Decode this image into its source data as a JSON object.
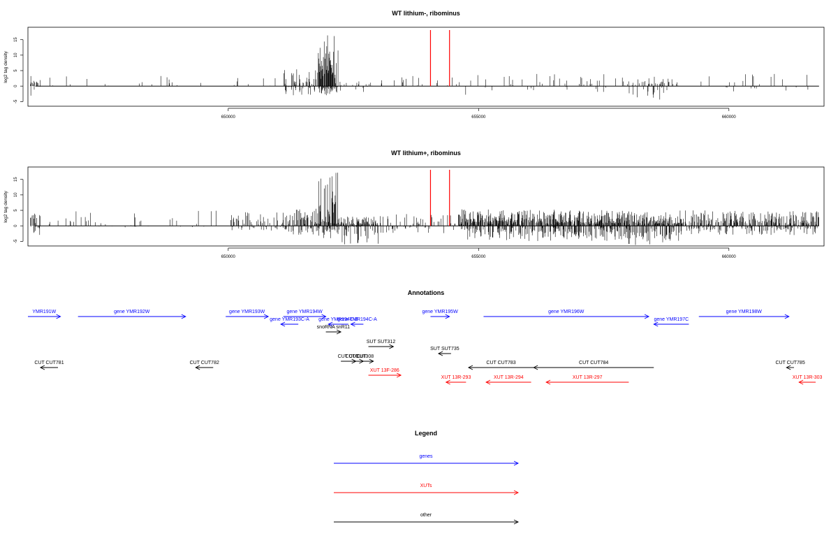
{
  "chart_data": [
    {
      "type": "bar",
      "title": "WT lithium-, ribominus",
      "ylabel": "log2 tag density",
      "xlim": [
        646000,
        661900
      ],
      "ylim": [
        -6.5,
        19
      ],
      "yticks": [
        -5,
        0,
        5,
        10,
        15
      ],
      "xticks": [
        "650000",
        "655000",
        "660000"
      ],
      "xtick_values": [
        650000,
        655000,
        660000
      ],
      "marker_lines_x": [
        654040,
        654420
      ],
      "marker_color": "#ff0000",
      "regions": [
        {
          "start": 646050,
          "end": 646250,
          "density": 0.35,
          "pos_max": 3.5,
          "neg_max": 3.5
        },
        {
          "start": 646300,
          "end": 649800,
          "density": 0.05,
          "pos_max": 3.5,
          "neg_max": 0
        },
        {
          "start": 650000,
          "end": 651100,
          "density": 0.05,
          "pos_max": 3.5,
          "neg_max": 0
        },
        {
          "start": 651100,
          "end": 651800,
          "density": 0.45,
          "pos_max": 5.5,
          "neg_max": 3
        },
        {
          "start": 651800,
          "end": 652200,
          "density": 0.9,
          "pos_max": 17.5,
          "neg_max": 3
        },
        {
          "start": 652200,
          "end": 653000,
          "density": 0.08,
          "pos_max": 2,
          "neg_max": 2.5
        },
        {
          "start": 653000,
          "end": 654600,
          "density": 0.07,
          "pos_max": 3.5,
          "neg_max": 0
        },
        {
          "start": 654600,
          "end": 658000,
          "density": 0.06,
          "pos_max": 4,
          "neg_max": 3
        },
        {
          "start": 658000,
          "end": 659000,
          "density": 0.25,
          "pos_max": 3,
          "neg_max": 4.5
        },
        {
          "start": 659000,
          "end": 661800,
          "density": 0.05,
          "pos_max": 4,
          "neg_max": 2
        }
      ]
    },
    {
      "type": "bar",
      "title": "WT lithium+, ribominus",
      "ylabel": "log2 tag density",
      "xlim": [
        646000,
        661900
      ],
      "ylim": [
        -6.5,
        19
      ],
      "yticks": [
        -5,
        0,
        5,
        10,
        15
      ],
      "xticks": [
        "650000",
        "655000",
        "660000"
      ],
      "xtick_values": [
        650000,
        655000,
        660000
      ],
      "marker_lines_x": [
        654040,
        654420
      ],
      "marker_color": "#ff0000",
      "regions": [
        {
          "start": 646050,
          "end": 646250,
          "density": 0.45,
          "pos_max": 4,
          "neg_max": 3
        },
        {
          "start": 646300,
          "end": 649800,
          "density": 0.07,
          "pos_max": 5,
          "neg_max": 0.5
        },
        {
          "start": 650000,
          "end": 651100,
          "density": 0.3,
          "pos_max": 4.5,
          "neg_max": 1.5
        },
        {
          "start": 651100,
          "end": 651800,
          "density": 0.55,
          "pos_max": 6,
          "neg_max": 3
        },
        {
          "start": 651800,
          "end": 652200,
          "density": 0.9,
          "pos_max": 18,
          "neg_max": 4
        },
        {
          "start": 652200,
          "end": 653000,
          "density": 0.6,
          "pos_max": 3,
          "neg_max": 6
        },
        {
          "start": 653000,
          "end": 654600,
          "density": 0.2,
          "pos_max": 4,
          "neg_max": 2.5
        },
        {
          "start": 654600,
          "end": 658000,
          "density": 0.8,
          "pos_max": 5.5,
          "neg_max": 5
        },
        {
          "start": 658000,
          "end": 659000,
          "density": 0.8,
          "pos_max": 4.5,
          "neg_max": 6.5
        },
        {
          "start": 659000,
          "end": 661800,
          "density": 0.6,
          "pos_max": 5,
          "neg_max": 3
        }
      ]
    }
  ],
  "annotations": {
    "title": "Annotations",
    "features": [
      {
        "label": "YMR191W",
        "kind": "gene",
        "start": 646000,
        "end": 646650,
        "dir": "+",
        "row": 0,
        "color": "#0000ff"
      },
      {
        "label": "gene YMR192W",
        "kind": "gene",
        "start": 647000,
        "end": 649150,
        "dir": "+",
        "row": 0,
        "color": "#0000ff"
      },
      {
        "label": "gene YMR193W",
        "kind": "gene",
        "start": 649950,
        "end": 650800,
        "dir": "+",
        "row": 0,
        "color": "#0000ff"
      },
      {
        "label": "gene YMR194W",
        "kind": "gene",
        "start": 651100,
        "end": 651950,
        "dir": "+",
        "row": 0,
        "color": "#0000ff"
      },
      {
        "label": "gene YMR193C-A",
        "kind": "gene",
        "start": 651050,
        "end": 651400,
        "dir": "-",
        "row": 1,
        "color": "#0000ff"
      },
      {
        "label": "gene YMR194C-B",
        "kind": "gene",
        "start": 652000,
        "end": 652400,
        "dir": "-",
        "row": 1,
        "color": "#0000ff"
      },
      {
        "label": "gene YMR194C-A",
        "kind": "gene",
        "start": 652450,
        "end": 652700,
        "dir": "-",
        "row": 1,
        "color": "#0000ff"
      },
      {
        "label": "snoRNA snR11",
        "kind": "other",
        "start": 651950,
        "end": 652250,
        "dir": "+",
        "row": 2,
        "color": "#000000"
      },
      {
        "label": "gene YMR195W",
        "kind": "gene",
        "start": 654040,
        "end": 654420,
        "dir": "+",
        "row": 0,
        "color": "#0000ff"
      },
      {
        "label": "gene YMR196W",
        "kind": "gene",
        "start": 655100,
        "end": 658400,
        "dir": "+",
        "row": 0,
        "color": "#0000ff"
      },
      {
        "label": "gene YMR197C",
        "kind": "gene",
        "start": 658500,
        "end": 659200,
        "dir": "-",
        "row": 1,
        "color": "#0000ff"
      },
      {
        "label": "gene YMR198W",
        "kind": "gene",
        "start": 659400,
        "end": 661200,
        "dir": "+",
        "row": 0,
        "color": "#0000ff"
      },
      {
        "label": "SUT SUT312",
        "kind": "other",
        "start": 652800,
        "end": 653300,
        "dir": "+",
        "row": 3,
        "color": "#000000"
      },
      {
        "label": "SUT SUT735",
        "kind": "other",
        "start": 654200,
        "end": 654450,
        "dir": "-",
        "row": 4,
        "color": "#000000"
      },
      {
        "label": "CUT CUT781",
        "kind": "other",
        "start": 646250,
        "end": 646600,
        "dir": "-",
        "row": 5,
        "color": "#000000"
      },
      {
        "label": "CUT CUT782",
        "kind": "other",
        "start": 649350,
        "end": 649700,
        "dir": "-",
        "row": 5,
        "color": "#000000"
      },
      {
        "label": "CUT CUT",
        "kind": "other",
        "start": 652250,
        "end": 652550,
        "dir": "+",
        "row": 6,
        "color": "#000000"
      },
      {
        "label": "CUT CUT",
        "kind": "other",
        "start": 652400,
        "end": 652700,
        "dir": "+",
        "row": 6,
        "color": "#000000"
      },
      {
        "label": "CUT308",
        "kind": "other",
        "start": 652550,
        "end": 652900,
        "dir": "+",
        "row": 6,
        "color": "#000000"
      },
      {
        "label": "CUT CUT783",
        "kind": "other",
        "start": 654800,
        "end": 656100,
        "dir": "-",
        "row": 5,
        "color": "#000000"
      },
      {
        "label": "CUT CUT784",
        "kind": "other",
        "start": 656100,
        "end": 658500,
        "dir": "-",
        "row": 5,
        "color": "#000000"
      },
      {
        "label": "CUT CUT785",
        "kind": "other",
        "start": 661150,
        "end": 661300,
        "dir": "-",
        "row": 5,
        "color": "#000000"
      },
      {
        "label": "XUT 13F-286",
        "kind": "xut",
        "start": 652800,
        "end": 653450,
        "dir": "+",
        "row": 7,
        "color": "#ff0000"
      },
      {
        "label": "XUT 13R-293",
        "kind": "xut",
        "start": 654350,
        "end": 654750,
        "dir": "-",
        "row": 8,
        "color": "#ff0000"
      },
      {
        "label": "XUT 13R-294",
        "kind": "xut",
        "start": 655150,
        "end": 656050,
        "dir": "-",
        "row": 8,
        "color": "#ff0000"
      },
      {
        "label": "XUT 13R-297",
        "kind": "xut",
        "start": 656350,
        "end": 658000,
        "dir": "-",
        "row": 8,
        "color": "#ff0000"
      },
      {
        "label": "XUT 13R-303",
        "kind": "xut",
        "start": 661400,
        "end": 661900,
        "dir": "-",
        "row": 8,
        "color": "#ff0000"
      }
    ]
  },
  "legend": {
    "title": "Legend",
    "items": [
      {
        "label": "genes",
        "color": "#0000ff"
      },
      {
        "label": "XUTs",
        "color": "#ff0000"
      },
      {
        "label": "other",
        "color": "#000000"
      }
    ]
  }
}
